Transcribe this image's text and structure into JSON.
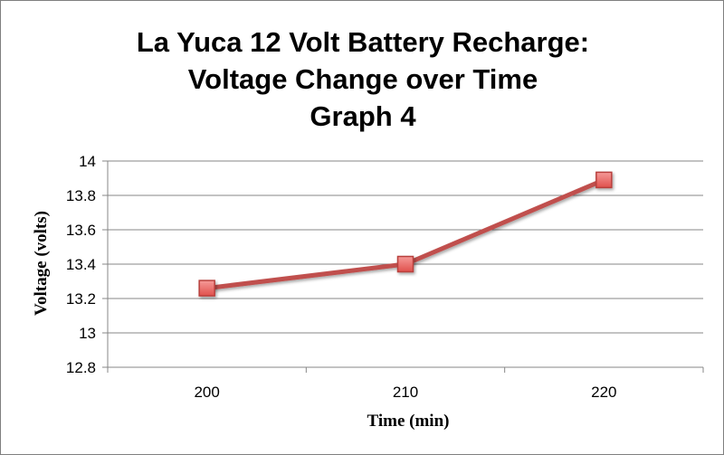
{
  "chart_data": {
    "type": "line",
    "title": [
      "La Yuca 12 Volt Battery Recharge:",
      "Voltage Change over Time",
      "Graph 4"
    ],
    "xlabel": "Time (min)",
    "ylabel": "Voltage (volts)",
    "categories": [
      "200",
      "210",
      "220"
    ],
    "series": [
      {
        "values": [
          13.26,
          13.4,
          13.89
        ],
        "color": "#c0504d"
      }
    ],
    "ylim": [
      12.8,
      14
    ],
    "ytick_step": 0.2,
    "yticks": [
      "12.8",
      "13",
      "13.2",
      "13.4",
      "13.6",
      "13.8",
      "14"
    ],
    "grid": "horizontal",
    "marker": "square",
    "marker_fill": "#f07878",
    "legend": "none"
  }
}
